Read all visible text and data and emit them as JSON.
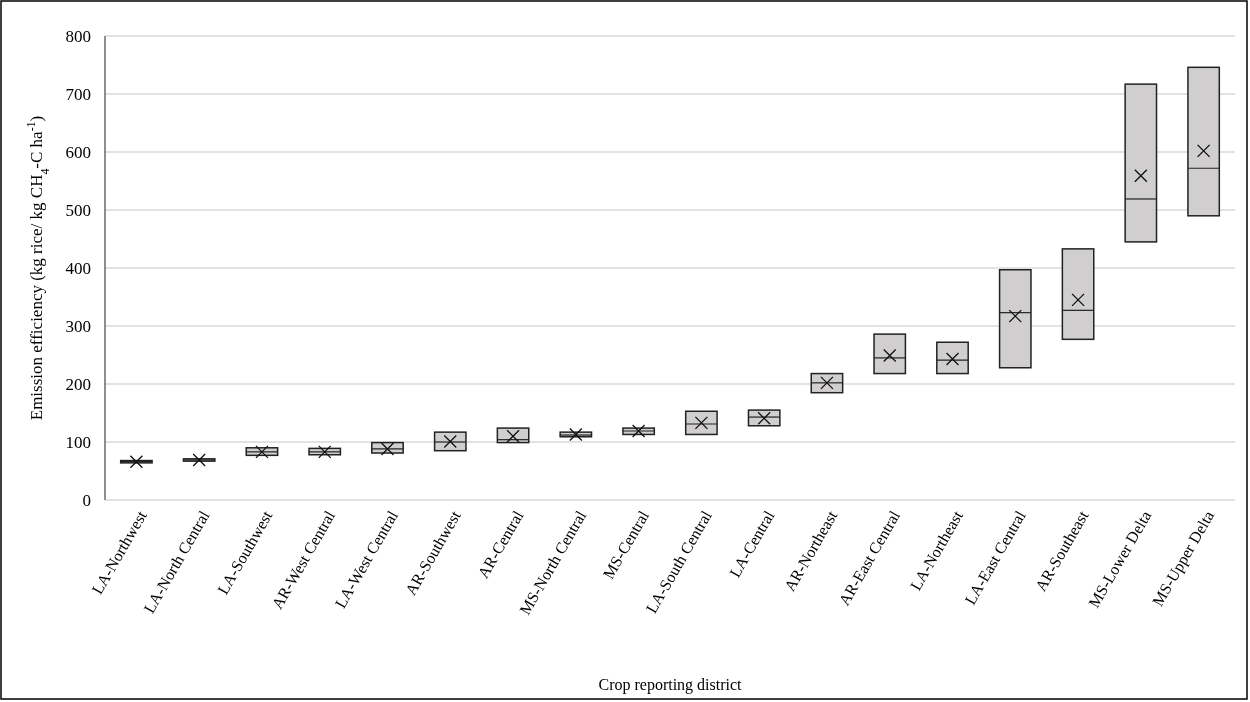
{
  "chart_data": {
    "type": "box",
    "xlabel": "Crop reporting district",
    "ylabel": "Emission efficiency (kg rice/ kg CH$_{4}$-C ha$^{-1}$)",
    "categories": [
      "LA-Northwest",
      "LA-North Central",
      "LA-Southwest",
      "AR-West Central",
      "LA-West Central",
      "AR-Southwest",
      "AR-Central",
      "MS-North Central",
      "MS-Central",
      "LA-South Central",
      "LA-Central",
      "AR-Northeast",
      "AR-East Central",
      "LA-Northeast",
      "LA-East Central",
      "AR-Southeast",
      "MS-Lower Delta",
      "MS-Upper Delta"
    ],
    "boxes": [
      {
        "low": 64,
        "q1": 64,
        "median": 66,
        "q3": 68,
        "high": 68,
        "mean": 66
      },
      {
        "low": 67,
        "q1": 67,
        "median": 69,
        "q3": 71,
        "high": 71,
        "mean": 69
      },
      {
        "low": 77,
        "q1": 77,
        "median": 83,
        "q3": 90,
        "high": 90,
        "mean": 83
      },
      {
        "low": 78,
        "q1": 78,
        "median": 83,
        "q3": 89,
        "high": 89,
        "mean": 83
      },
      {
        "low": 81,
        "q1": 81,
        "median": 88,
        "q3": 99,
        "high": 99,
        "mean": 88
      },
      {
        "low": 85,
        "q1": 85,
        "median": 100,
        "q3": 117,
        "high": 117,
        "mean": 101
      },
      {
        "low": 99,
        "q1": 99,
        "median": 104,
        "q3": 124,
        "high": 124,
        "mean": 110
      },
      {
        "low": 109,
        "q1": 109,
        "median": 112,
        "q3": 117,
        "high": 117,
        "mean": 113
      },
      {
        "low": 113,
        "q1": 113,
        "median": 119,
        "q3": 124,
        "high": 124,
        "mean": 119
      },
      {
        "low": 113,
        "q1": 113,
        "median": 131,
        "q3": 153,
        "high": 153,
        "mean": 133
      },
      {
        "low": 128,
        "q1": 128,
        "median": 143,
        "q3": 155,
        "high": 155,
        "mean": 141
      },
      {
        "low": 185,
        "q1": 185,
        "median": 202,
        "q3": 218,
        "high": 218,
        "mean": 202
      },
      {
        "low": 218,
        "q1": 218,
        "median": 245,
        "q3": 286,
        "high": 286,
        "mean": 249
      },
      {
        "low": 218,
        "q1": 218,
        "median": 241,
        "q3": 272,
        "high": 272,
        "mean": 243
      },
      {
        "low": 228,
        "q1": 228,
        "median": 323,
        "q3": 397,
        "high": 397,
        "mean": 317
      },
      {
        "low": 277,
        "q1": 277,
        "median": 327,
        "q3": 433,
        "high": 433,
        "mean": 345
      },
      {
        "low": 445,
        "q1": 445,
        "median": 519,
        "q3": 717,
        "high": 717,
        "mean": 559
      },
      {
        "low": 490,
        "q1": 490,
        "median": 572,
        "q3": 746,
        "high": 746,
        "mean": 602
      }
    ],
    "color": "#d0cece",
    "ylim": [
      0,
      800
    ],
    "yticks": [
      0,
      100,
      200,
      300,
      400,
      500,
      600,
      700,
      800
    ],
    "grid": "y"
  }
}
